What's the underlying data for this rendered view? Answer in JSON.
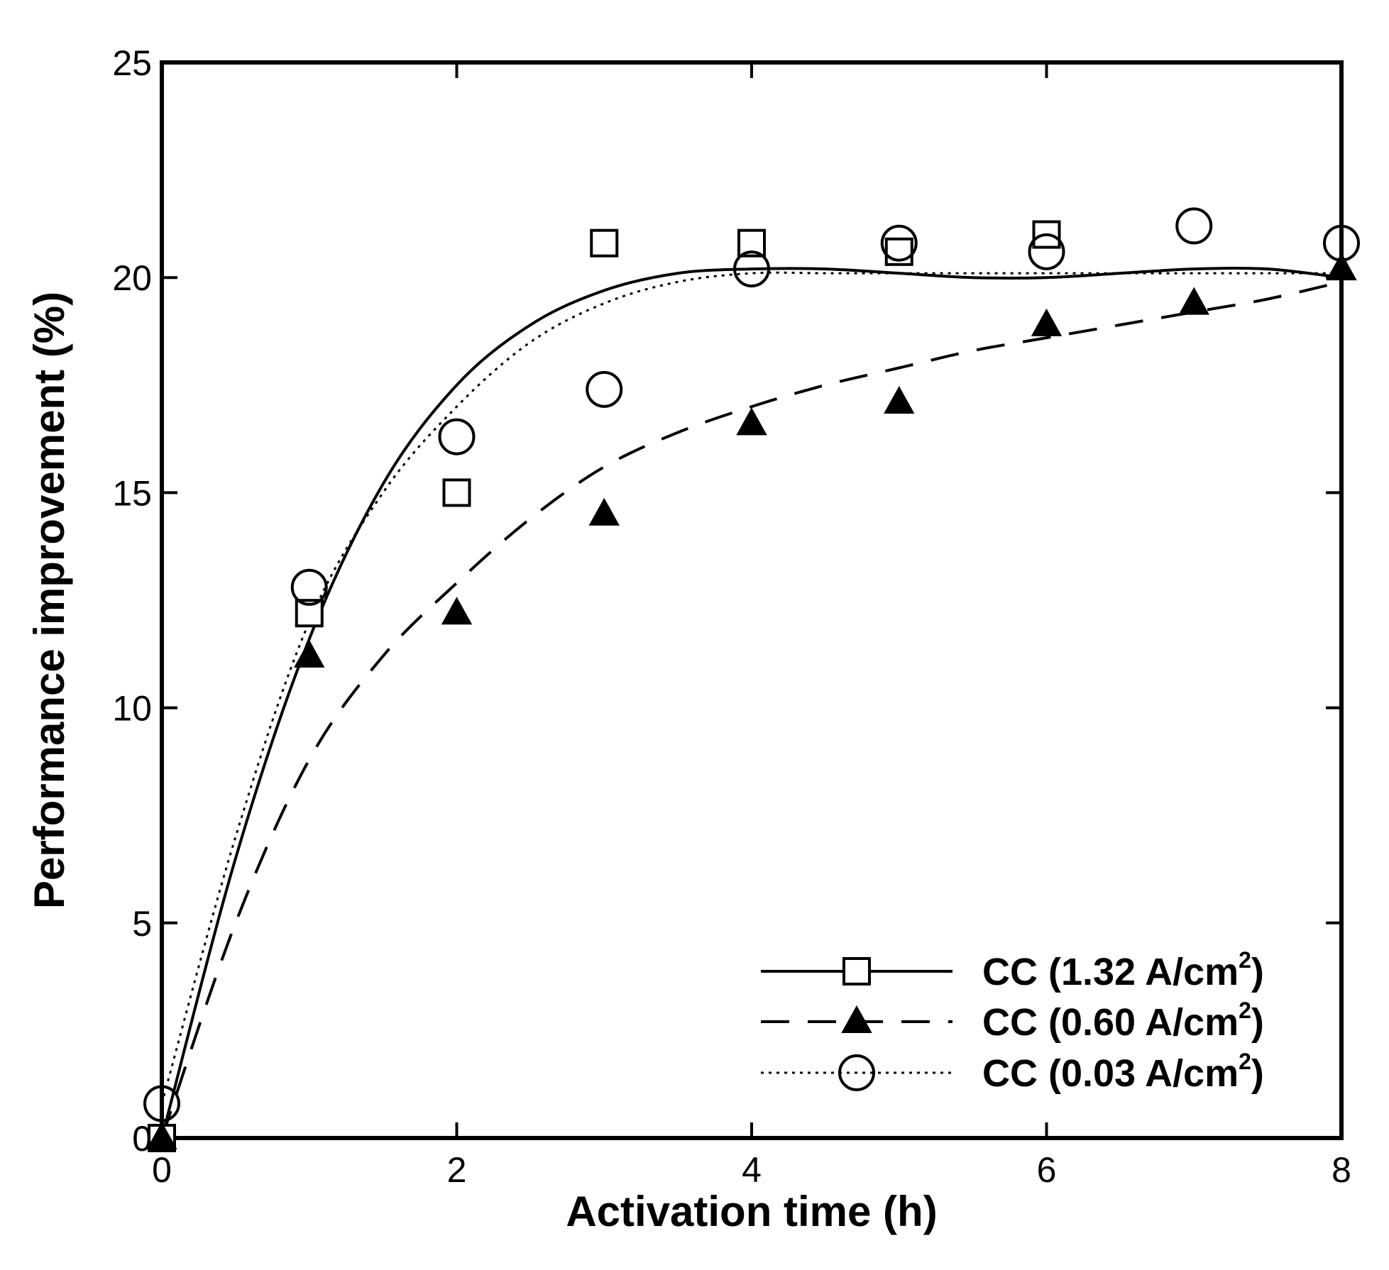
{
  "chart_data": {
    "type": "scatter",
    "title": "",
    "xlabel": "Activation time (h)",
    "ylabel": "Performance improvement (%)",
    "xlim": [
      0,
      8
    ],
    "ylim": [
      0,
      25
    ],
    "xticks": [
      0,
      2,
      4,
      6,
      8
    ],
    "yticks": [
      0,
      5,
      10,
      15,
      20,
      25
    ],
    "grid": false,
    "legend_position": "bottom-right",
    "series": [
      {
        "name": "CC (1.32 A/cm2)",
        "label_main": "CC (1.32 A/cm",
        "label_sup": "2",
        "label_end": ")",
        "marker": "open-square",
        "line_style": "solid",
        "points": [
          [
            0,
            0
          ],
          [
            1,
            12.2
          ],
          [
            2,
            15.0
          ],
          [
            3,
            20.8
          ],
          [
            4,
            20.8
          ],
          [
            5,
            20.6
          ],
          [
            6,
            21.0
          ]
        ],
        "fit": [
          [
            0,
            0
          ],
          [
            0.5,
            6.5
          ],
          [
            1,
            11.6
          ],
          [
            1.5,
            15.2
          ],
          [
            2,
            17.5
          ],
          [
            2.5,
            18.9
          ],
          [
            3,
            19.7
          ],
          [
            3.5,
            20.1
          ],
          [
            4,
            20.2
          ],
          [
            4.5,
            20.2
          ],
          [
            5,
            20.1
          ],
          [
            5.5,
            20.0
          ],
          [
            6,
            20.0
          ],
          [
            6.5,
            20.1
          ],
          [
            7,
            20.2
          ],
          [
            7.5,
            20.2
          ],
          [
            8,
            20.0
          ]
        ]
      },
      {
        "name": "CC (0.60 A/cm2)",
        "label_main": "CC (0.60 A/cm",
        "label_sup": "2",
        "label_end": ")",
        "marker": "filled-triangle",
        "line_style": "dashed",
        "points": [
          [
            0,
            0
          ],
          [
            1,
            11.2
          ],
          [
            2,
            12.2
          ],
          [
            3,
            14.5
          ],
          [
            4,
            16.6
          ],
          [
            5,
            17.1
          ],
          [
            6,
            18.9
          ],
          [
            7,
            19.4
          ],
          [
            8,
            20.2
          ]
        ],
        "fit": [
          [
            0,
            0
          ],
          [
            0.5,
            5.0
          ],
          [
            1,
            8.8
          ],
          [
            1.5,
            11.2
          ],
          [
            2,
            12.9
          ],
          [
            2.5,
            14.4
          ],
          [
            3,
            15.6
          ],
          [
            3.5,
            16.4
          ],
          [
            4,
            17.0
          ],
          [
            4.5,
            17.5
          ],
          [
            5,
            17.9
          ],
          [
            5.5,
            18.3
          ],
          [
            6,
            18.6
          ],
          [
            6.5,
            18.9
          ],
          [
            7,
            19.2
          ],
          [
            7.5,
            19.5
          ],
          [
            8,
            19.9
          ]
        ]
      },
      {
        "name": "CC (0.03 A/cm2)",
        "label_main": "CC (0.03 A/cm",
        "label_sup": "2",
        "label_end": ")",
        "marker": "open-circle",
        "line_style": "dotted",
        "points": [
          [
            0,
            0.8
          ],
          [
            1,
            12.8
          ],
          [
            2,
            16.3
          ],
          [
            3,
            17.4
          ],
          [
            4,
            20.2
          ],
          [
            5,
            20.8
          ],
          [
            6,
            20.6
          ],
          [
            7,
            21.2
          ],
          [
            8,
            20.8
          ]
        ],
        "fit": [
          [
            0,
            0.8
          ],
          [
            0.5,
            7.0
          ],
          [
            1,
            12.0
          ],
          [
            1.5,
            15.0
          ],
          [
            2,
            17.0
          ],
          [
            2.5,
            18.5
          ],
          [
            3,
            19.4
          ],
          [
            3.5,
            19.9
          ],
          [
            4,
            20.1
          ],
          [
            4.5,
            20.1
          ],
          [
            5,
            20.1
          ],
          [
            5.5,
            20.1
          ],
          [
            6,
            20.1
          ],
          [
            6.5,
            20.1
          ],
          [
            7,
            20.1
          ],
          [
            7.5,
            20.1
          ],
          [
            8,
            20.1
          ]
        ]
      }
    ]
  }
}
